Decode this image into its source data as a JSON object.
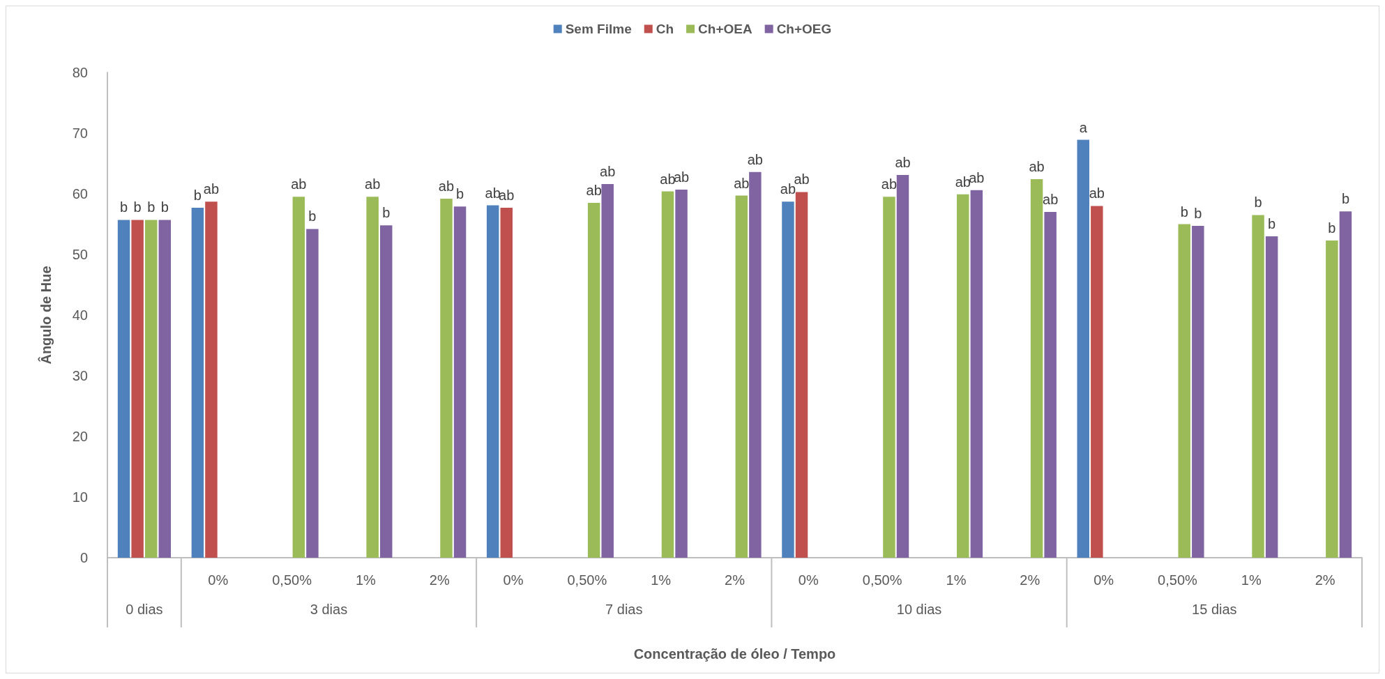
{
  "chart_data": {
    "type": "bar",
    "xlabel": "Concentração de óleo / Tempo",
    "ylabel": "Ângulo de Hue",
    "categories": [
      null,
      "0%",
      "0,50%",
      "1%",
      "2%",
      "0%",
      "0,50%",
      "1%",
      "2%",
      "0%",
      "0,50%",
      "1%",
      "2%",
      "0%",
      "0,50%",
      "1%",
      "2%"
    ],
    "annotations": [
      "0 dias",
      "3 dias",
      "7 dias",
      "10 dias",
      "15 dias"
    ],
    "series": [
      {
        "name": "Sem Filme",
        "color": "#4f81bd",
        "values": [
          55.7,
          57.7,
          null,
          null,
          null,
          58.1,
          null,
          null,
          null,
          58.7,
          null,
          null,
          null,
          68.9,
          null,
          null,
          null
        ],
        "value_labels": [
          "b",
          "b",
          null,
          null,
          null,
          "ab",
          null,
          null,
          null,
          "ab",
          null,
          null,
          null,
          "a",
          null,
          null,
          null
        ]
      },
      {
        "name": "Ch",
        "color": "#c0504d",
        "values": [
          55.7,
          58.7,
          null,
          null,
          null,
          57.7,
          null,
          null,
          null,
          60.3,
          null,
          null,
          null,
          58.0,
          null,
          null,
          null
        ],
        "value_labels": [
          "b",
          "ab",
          null,
          null,
          null,
          "ab",
          null,
          null,
          null,
          "ab",
          null,
          null,
          null,
          "ab",
          null,
          null,
          null
        ]
      },
      {
        "name": "Ch+OEA",
        "color": "#9bbb59",
        "values": [
          55.7,
          null,
          59.5,
          59.5,
          59.2,
          null,
          58.5,
          60.4,
          59.7,
          null,
          59.5,
          59.9,
          62.4,
          null,
          55.0,
          56.5,
          52.3
        ],
        "value_labels": [
          "b",
          null,
          "ab",
          "ab",
          "ab",
          null,
          "ab",
          "ab",
          "ab",
          null,
          "ab",
          "ab",
          "ab",
          null,
          "b",
          "b",
          "b"
        ]
      },
      {
        "name": "Ch+OEG",
        "color": "#8064a2",
        "values": [
          55.7,
          null,
          54.2,
          54.8,
          57.9,
          null,
          61.6,
          60.7,
          63.6,
          null,
          63.1,
          60.6,
          57.0,
          null,
          54.7,
          53.0,
          57.1
        ],
        "value_labels": [
          "b",
          null,
          "b",
          "b",
          "b",
          null,
          "ab",
          "ab",
          "ab",
          null,
          "ab",
          "ab",
          "ab",
          null,
          "b",
          "b",
          "b"
        ]
      }
    ],
    "ylim": [
      0,
      80
    ],
    "yticks": [
      0,
      10,
      20,
      30,
      40,
      50,
      60,
      70,
      80
    ],
    "grid": false,
    "legend": "top"
  }
}
